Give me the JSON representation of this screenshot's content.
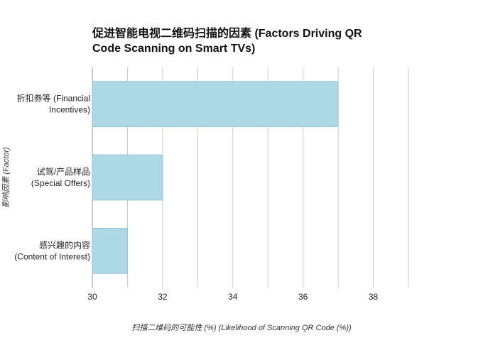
{
  "chart_data": {
    "type": "bar",
    "orientation": "horizontal",
    "title_lines": [
      "促进智能电视二维码扫描的因素 (Factors Driving QR",
      "Code Scanning on Smart TVs)"
    ],
    "xlabel": "扫描二维码的可能性 (%) (Likelihood of Scanning QR Code (%))",
    "ylabel": "影响因素 (Factor)",
    "categories": [
      [
        "折扣券等 (Financial",
        "Incentives)"
      ],
      [
        "试驾/产品样品",
        "(Special Offers)"
      ],
      [
        "感兴趣的内容",
        "(Content of Interest)"
      ]
    ],
    "values": [
      37,
      32,
      31
    ],
    "xlim": [
      30,
      39
    ],
    "xticks": [
      "30",
      "32",
      "34",
      "36",
      "38"
    ],
    "grid": true,
    "legend": "none",
    "bar_color": "#add8e6",
    "bar_edge_color": "#87b8c8",
    "grid_color": "#cccccc"
  }
}
